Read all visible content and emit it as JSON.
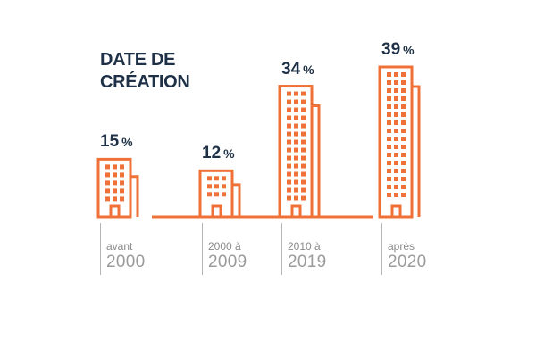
{
  "chart_data": {
    "type": "bar",
    "title_lines": [
      "DATE DE",
      "CRÉATION"
    ],
    "categories": [
      {
        "line1": "avant",
        "line2": "2000"
      },
      {
        "line1": "2000 à",
        "line2": "2009"
      },
      {
        "line1": "2010 à",
        "line2": "2019"
      },
      {
        "line1": "après",
        "line2": "2020"
      }
    ],
    "values": [
      15,
      12,
      34,
      39
    ],
    "value_unit": "%",
    "bar_style": "building-icon",
    "ylim": [
      0,
      39
    ],
    "grid": false,
    "legend": "none",
    "colors": {
      "bars": "#f07138",
      "title": "#1f3147",
      "values": "#1f3147",
      "category_small": "#8a8a8a",
      "category_large": "#9a9a9a",
      "divider": "#b5b5b5"
    }
  }
}
